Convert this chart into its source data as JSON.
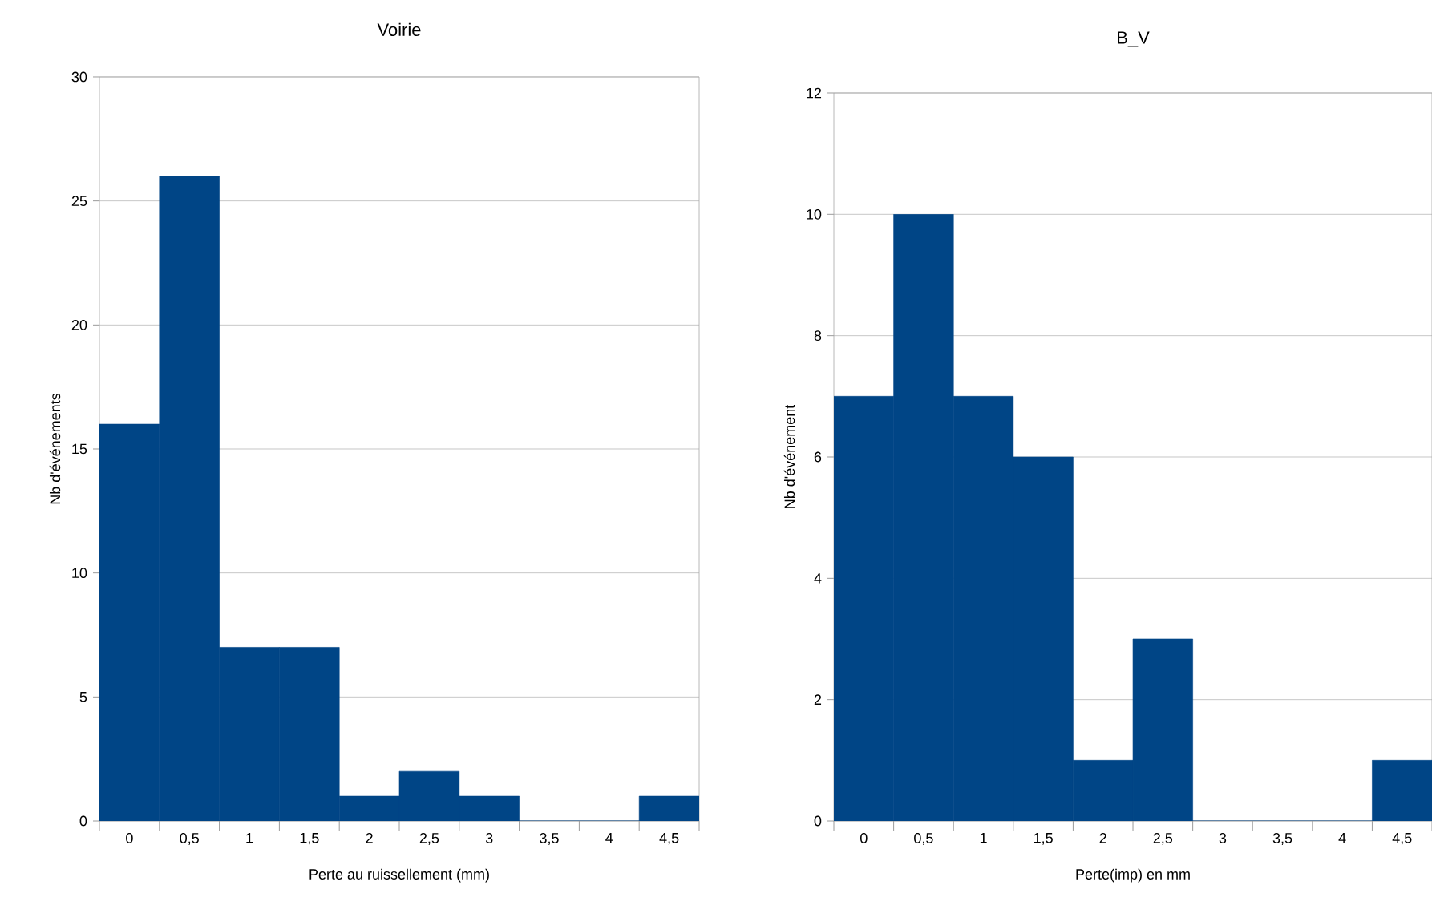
{
  "chart_data": [
    {
      "type": "bar",
      "title": "Voirie",
      "xlabel": "Perte au ruissellement (mm)",
      "ylabel": "Nb d'événements",
      "categories": [
        "0",
        "0,5",
        "1",
        "1,5",
        "2",
        "2,5",
        "3",
        "3,5",
        "4",
        "4,5"
      ],
      "values": [
        16,
        26,
        7,
        7,
        1,
        2,
        1,
        0,
        0,
        1
      ],
      "color": "#004586",
      "ylim": [
        0,
        30
      ],
      "yticks": [
        0,
        5,
        10,
        15,
        20,
        25,
        30
      ],
      "grid": "y"
    },
    {
      "type": "bar",
      "title": "B_V",
      "xlabel": "Perte(imp) en mm",
      "ylabel": "Nb d'événement",
      "categories": [
        "0",
        "0,5",
        "1",
        "1,5",
        "2",
        "2,5",
        "3",
        "3,5",
        "4",
        "4,5"
      ],
      "values": [
        7,
        10,
        7,
        6,
        1,
        3,
        0,
        0,
        0,
        1
      ],
      "color": "#004586",
      "ylim": [
        0,
        12
      ],
      "yticks": [
        0,
        2,
        4,
        6,
        8,
        10,
        12
      ],
      "grid": "y"
    }
  ]
}
